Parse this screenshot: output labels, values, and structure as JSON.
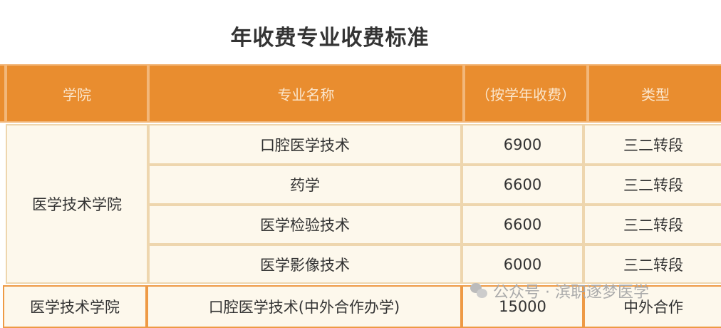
{
  "title": "年收费专业收费标准",
  "headers": [
    "学院",
    "专业名称",
    "（按学年收费）",
    "类型"
  ],
  "group_college": "医学技术学院",
  "rows": [
    {
      "major": "口腔医学技术",
      "fee": "6900",
      "type": "三二转段"
    },
    {
      "major": "药学",
      "fee": "6600",
      "type": "三二转段"
    },
    {
      "major": "医学检验技术",
      "fee": "6600",
      "type": "三二转段"
    },
    {
      "major": "医学影像技术",
      "fee": "6000",
      "type": "三二转段"
    }
  ],
  "last_row": {
    "college": "医学技术学院",
    "major": "口腔医学技术(中外合作办学)",
    "fee": "15000",
    "type": "中外合作"
  },
  "watermark": "公众号 · 滨职逐梦医学"
}
